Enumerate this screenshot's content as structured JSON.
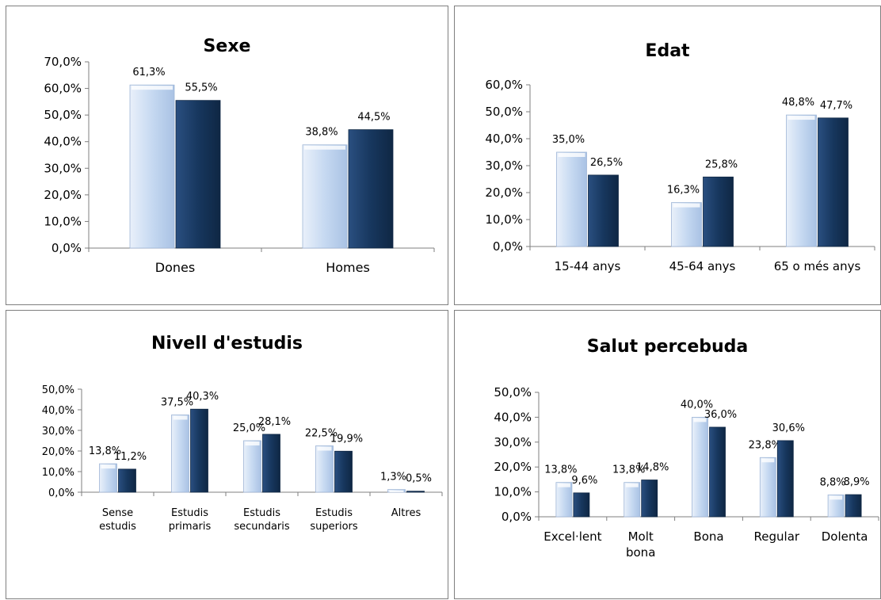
{
  "colors": {
    "light_bar": "#c6d9f1",
    "dark_bar": "#17375e",
    "axis": "#7f7f7f",
    "text": "#000000"
  },
  "chart_data": [
    {
      "type": "bar",
      "title": "Sexe",
      "categories": [
        "Dones",
        "Homes"
      ],
      "series": [
        {
          "values": [
            61.3,
            38.8
          ],
          "labels": [
            "61,3%",
            "38,8%"
          ]
        },
        {
          "values": [
            55.5,
            44.5
          ],
          "labels": [
            "55,5%",
            "44,5%"
          ]
        }
      ],
      "ylim": [
        0,
        70
      ],
      "yticks": [
        "0,0%",
        "10,0%",
        "20,0%",
        "30,0%",
        "40,0%",
        "50,0%",
        "60,0%",
        "70,0%"
      ],
      "grid": false
    },
    {
      "type": "bar",
      "title": "Edat",
      "categories": [
        "15-44 anys",
        "45-64 anys",
        "65 o més anys"
      ],
      "series": [
        {
          "values": [
            35.0,
            16.3,
            48.8
          ],
          "labels": [
            "35,0%",
            "16,3%",
            "48,8%"
          ]
        },
        {
          "values": [
            26.5,
            25.8,
            47.7
          ],
          "labels": [
            "26,5%",
            "25,8%",
            "47,7%"
          ]
        }
      ],
      "ylim": [
        0,
        60
      ],
      "yticks": [
        "0,0%",
        "10,0%",
        "20,0%",
        "30,0%",
        "40,0%",
        "50,0%",
        "60,0%"
      ],
      "grid": false
    },
    {
      "type": "bar",
      "title": "Nivell d'estudis",
      "categories": [
        [
          "Sense",
          "estudis"
        ],
        [
          "Estudis",
          "primaris"
        ],
        [
          "Estudis",
          "secundaris"
        ],
        [
          "Estudis",
          "superiors"
        ],
        [
          "Altres"
        ]
      ],
      "series": [
        {
          "values": [
            13.8,
            37.5,
            25.0,
            22.5,
            1.3
          ],
          "labels": [
            "13,8%",
            "37,5%",
            "25,0%",
            "22,5%",
            "1,3%"
          ]
        },
        {
          "values": [
            11.2,
            40.3,
            28.1,
            19.9,
            0.5
          ],
          "labels": [
            "11,2%",
            "40,3%",
            "28,1%",
            "19,9%",
            "0,5%"
          ]
        }
      ],
      "ylim": [
        0,
        50
      ],
      "yticks": [
        "0,0%",
        "10,0%",
        "20,0%",
        "30,0%",
        "40,0%",
        "50,0%"
      ],
      "grid": false
    },
    {
      "type": "bar",
      "title": "Salut percebuda",
      "categories": [
        [
          "Excel·lent"
        ],
        [
          "Molt",
          "bona"
        ],
        [
          "Bona"
        ],
        [
          "Regular"
        ],
        [
          "Dolenta"
        ]
      ],
      "series": [
        {
          "values": [
            13.8,
            13.8,
            40.0,
            23.8,
            8.8
          ],
          "labels": [
            "13,8%",
            "13,8%",
            "40,0%",
            "23,8%",
            "8,8%"
          ]
        },
        {
          "values": [
            9.6,
            14.8,
            36.0,
            30.6,
            8.9
          ],
          "labels": [
            "9,6%",
            "14,8%",
            "36,0%",
            "30,6%",
            "8,9%"
          ]
        }
      ],
      "ylim": [
        0,
        50
      ],
      "yticks": [
        "0,0%",
        "10,0%",
        "20,0%",
        "30,0%",
        "40,0%",
        "50,0%"
      ],
      "grid": false
    }
  ]
}
